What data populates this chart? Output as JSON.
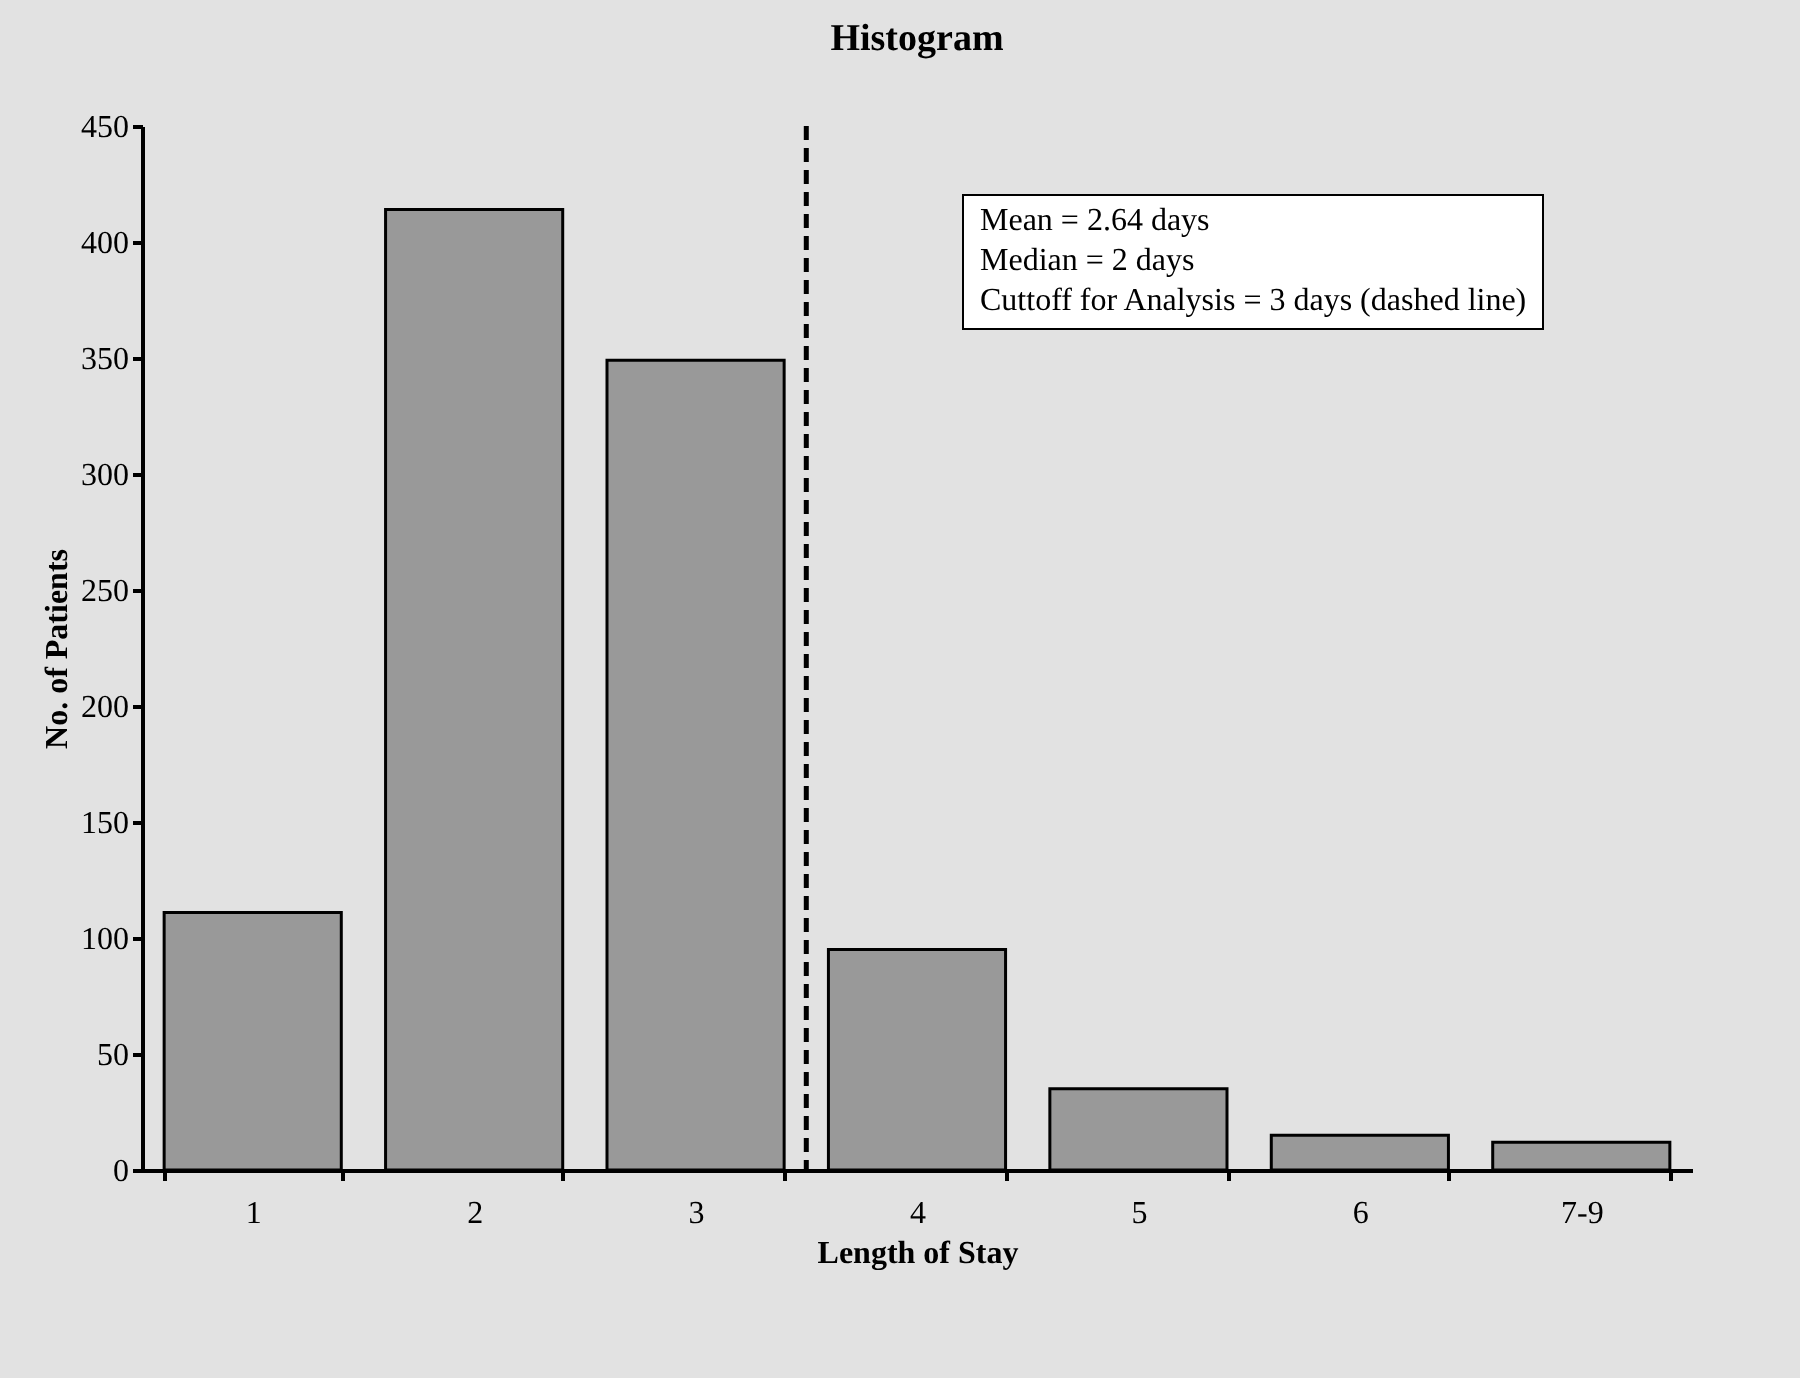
{
  "chart_data": {
    "type": "bar",
    "title": "Histogram",
    "xlabel": "Length of Stay",
    "ylabel": "No. of Patients",
    "categories": [
      "1",
      "2",
      "3",
      "4",
      "5",
      "6",
      "7-9"
    ],
    "values": [
      111,
      414,
      349,
      95,
      35,
      15,
      12
    ],
    "color": "#999999",
    "ylim": [
      0,
      450
    ],
    "yticks": [
      0,
      50,
      100,
      150,
      200,
      250,
      300,
      350,
      400,
      450
    ],
    "annotations": [
      "Mean = 2.64 days",
      "Median = 2 days",
      "Cuttoff for Analysis = 3 days (dashed line)"
    ]
  }
}
